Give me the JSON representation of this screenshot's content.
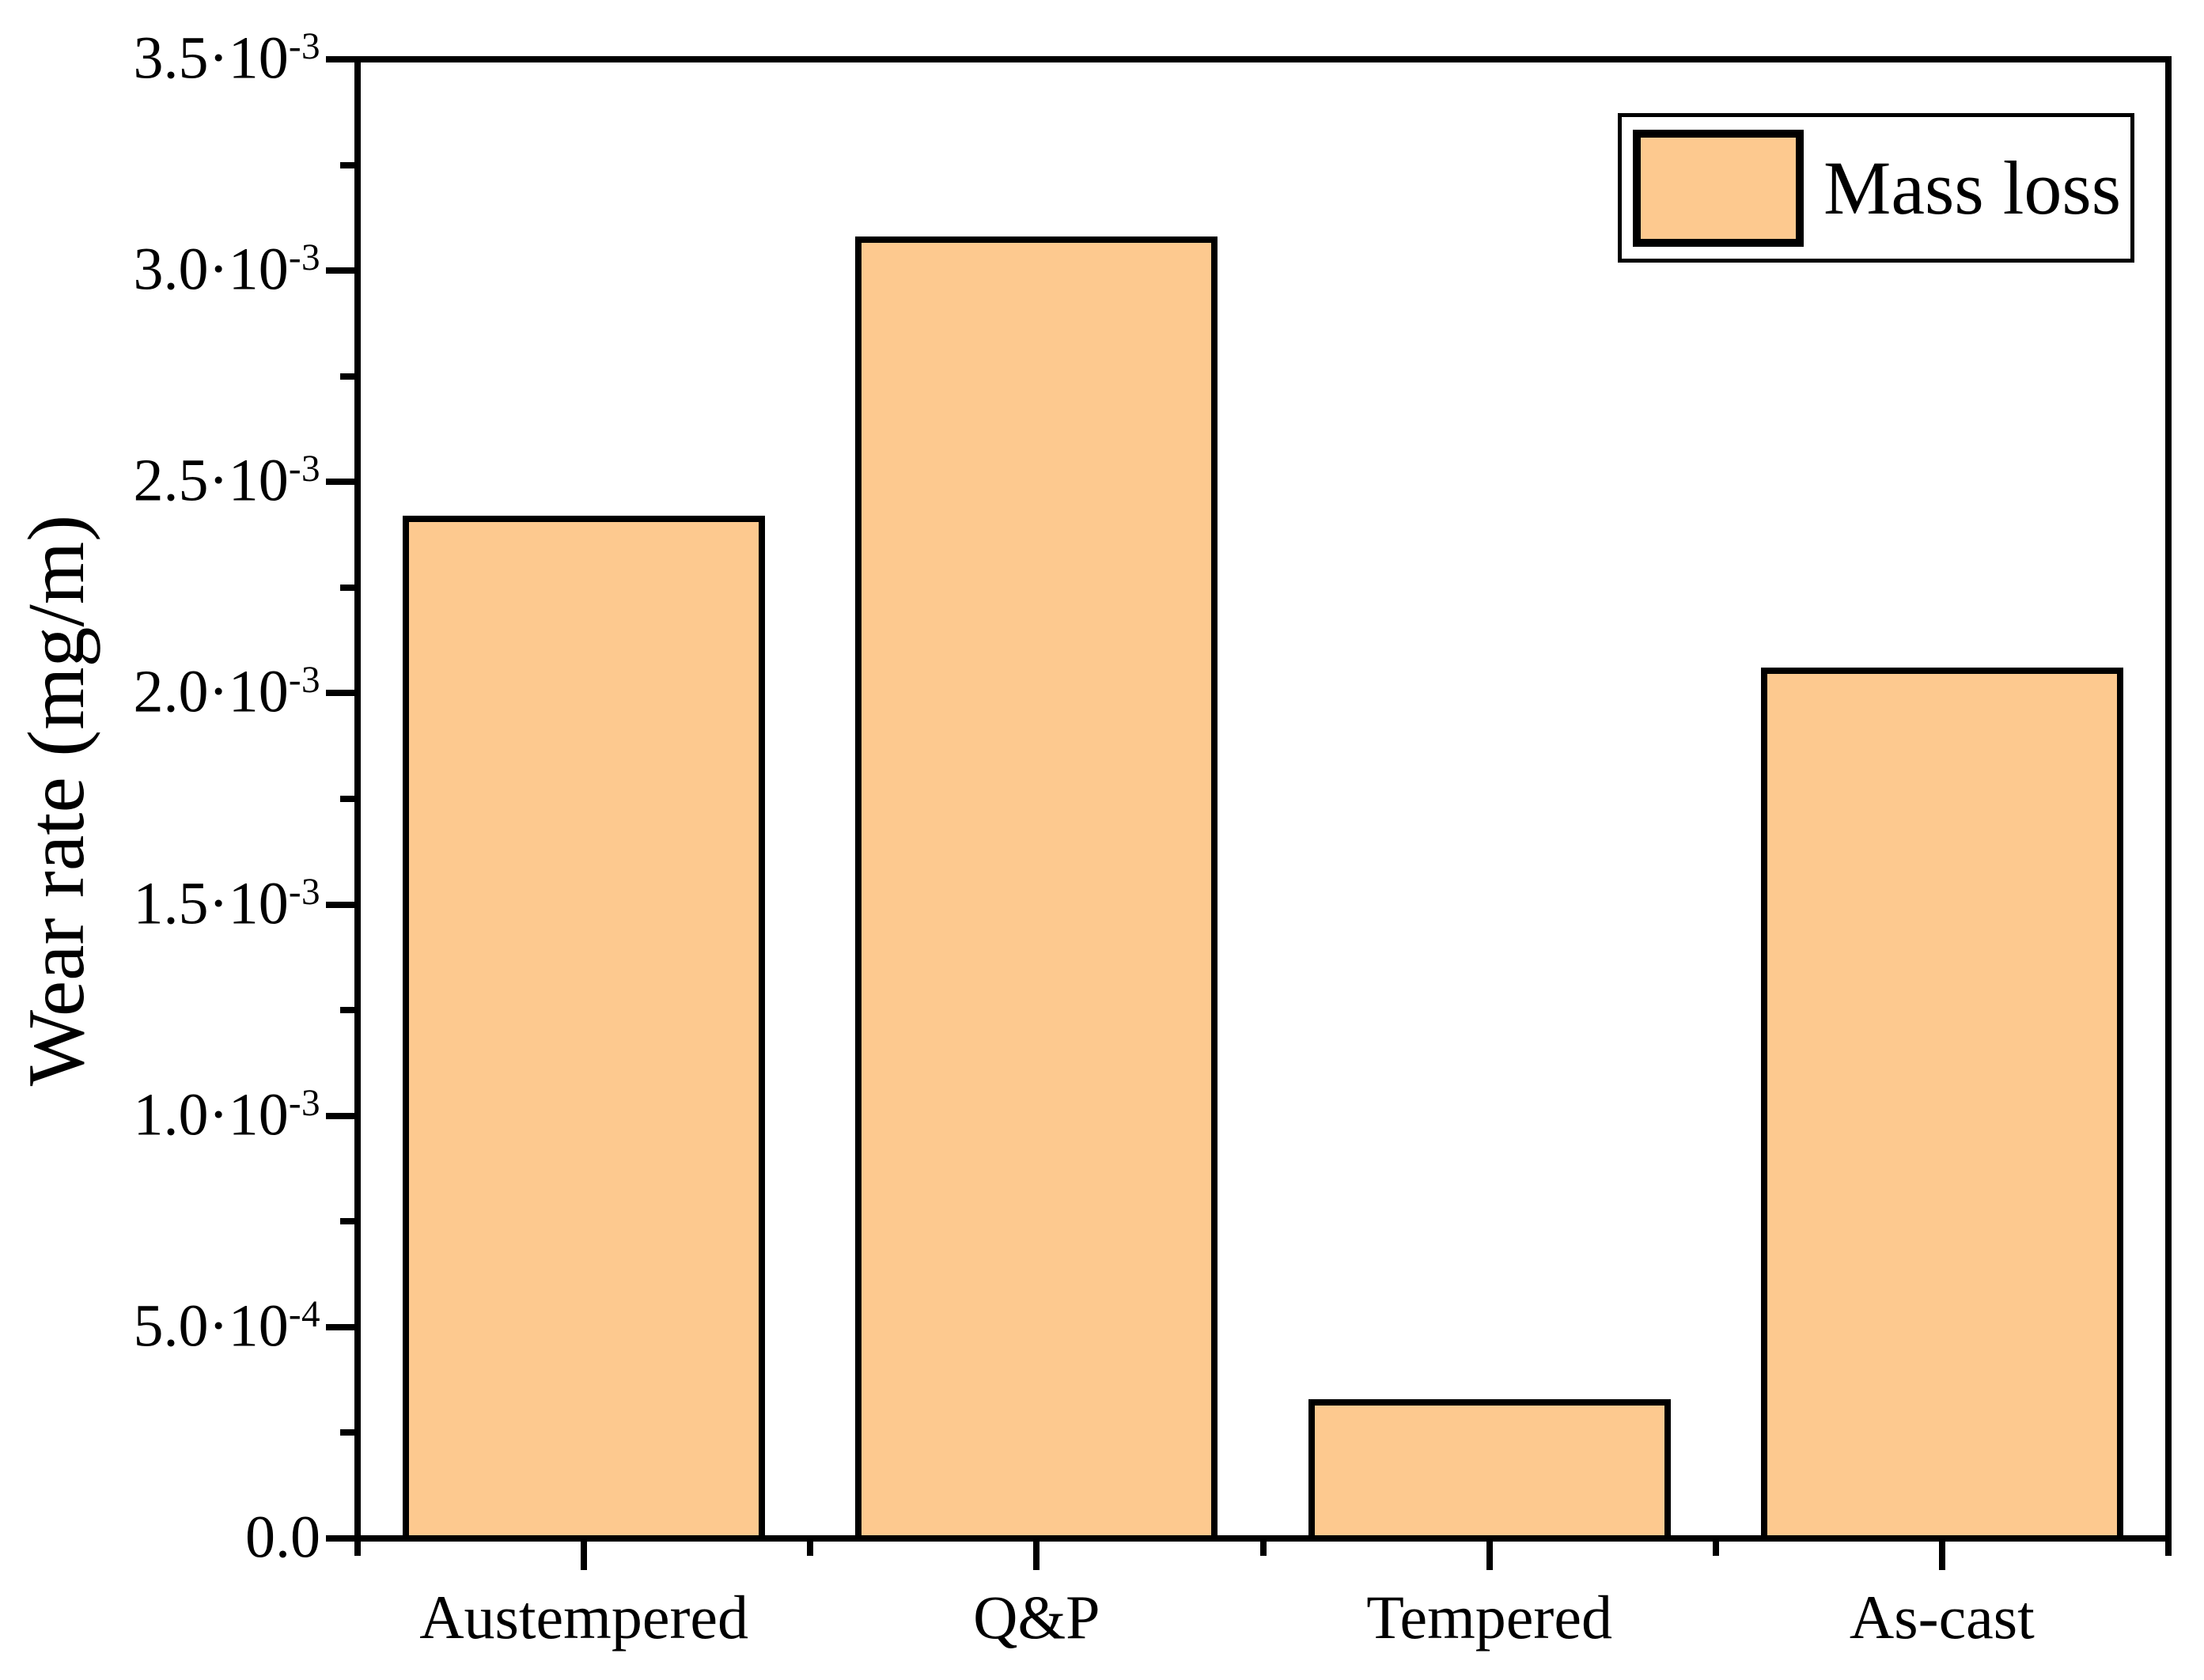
{
  "figure": {
    "background": "#FFFFFF"
  },
  "axes": {
    "y_label": "Wear rate (mg/m)"
  },
  "legend": {
    "label": "Mass loss",
    "swatch_fill": "#FDC98F",
    "swatch_border": "#000000"
  },
  "chart_data": {
    "type": "bar",
    "title": "",
    "categories": [
      "Austempered",
      "Q&P",
      "Tempered",
      "As-cast"
    ],
    "series": [
      {
        "name": "Mass loss",
        "values": [
          0.00242,
          0.00308,
          0.00033,
          0.00206
        ]
      }
    ],
    "xlabel": "",
    "ylabel": "Wear rate (mg/m)",
    "ylim": [
      0,
      0.0035
    ],
    "y_tick_values": [
      0,
      0.0005,
      0.001,
      0.0015,
      0.002,
      0.0025,
      0.003,
      0.0035
    ],
    "y_tick_labels": [
      {
        "mantissa": "0.0",
        "exponent": ""
      },
      {
        "mantissa": "5.0·10",
        "exponent": "-4"
      },
      {
        "mantissa": "1.0·10",
        "exponent": "-3"
      },
      {
        "mantissa": "1.5·10",
        "exponent": "-3"
      },
      {
        "mantissa": "2.0·10",
        "exponent": "-3"
      },
      {
        "mantissa": "2.5·10",
        "exponent": "-3"
      },
      {
        "mantissa": "3.0·10",
        "exponent": "-3"
      },
      {
        "mantissa": "3.5·10",
        "exponent": "-3"
      }
    ],
    "y_minor_tick_step": 0.00025,
    "bar_fill": "#FDC98F",
    "bar_border": "#000000",
    "grid": false,
    "legend_position": "top-right"
  }
}
